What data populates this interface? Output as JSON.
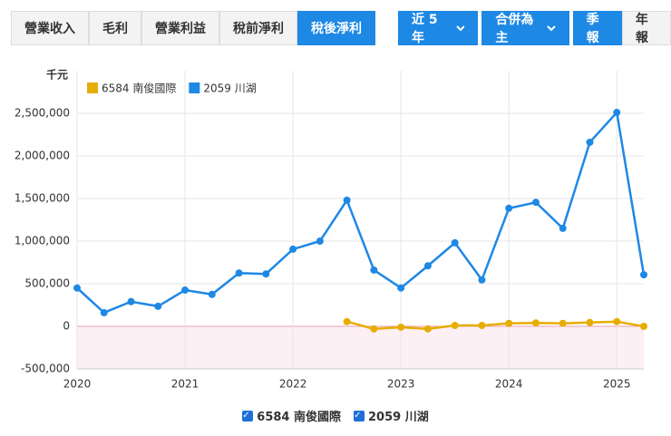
{
  "toolbar": {
    "metrics": [
      "營業收入",
      "毛利",
      "營業利益",
      "稅前淨利",
      "稅後淨利"
    ],
    "active_metric": 4,
    "range": "近 5 年",
    "basis": "合併為主",
    "periods": [
      "季報",
      "年報"
    ],
    "active_period": 0
  },
  "chart_data": {
    "type": "line",
    "y_unit": "千元",
    "x": [
      2020,
      2020.25,
      2020.5,
      2020.75,
      2021,
      2021.25,
      2021.5,
      2021.75,
      2022,
      2022.25,
      2022.5,
      2022.75,
      2023,
      2023.25,
      2023.5,
      2023.75,
      2024,
      2024.25,
      2024.5,
      2024.75,
      2025,
      2025.25
    ],
    "xlim": [
      2020,
      2025.25
    ],
    "xticks": [
      2020,
      2021,
      2022,
      2023,
      2024,
      2025
    ],
    "ylim": [
      -500000,
      3000000
    ],
    "yticks": [
      {
        "value": -500000,
        "label": "-500,000"
      },
      0,
      {
        "value": 500000,
        "label": "500,000"
      },
      {
        "value": 1000000,
        "label": "1,000,000"
      },
      {
        "value": 1500000,
        "label": "1,500,000"
      },
      {
        "value": 2000000,
        "label": "2,000,000"
      },
      {
        "value": 2500000,
        "label": "2,500,000"
      }
    ],
    "grid": true,
    "series": [
      {
        "name": "6584 南俊國際",
        "color": "#e6ad00",
        "values": [
          null,
          null,
          null,
          null,
          null,
          null,
          null,
          null,
          null,
          null,
          55000,
          -30000,
          -10000,
          -30000,
          10000,
          10000,
          35000,
          40000,
          35000,
          45000,
          55000,
          0
        ]
      },
      {
        "name": "2059 川湖",
        "color": "#1e88e5",
        "values": [
          450000,
          160000,
          290000,
          235000,
          425000,
          375000,
          625000,
          615000,
          905000,
          1000000,
          1480000,
          660000,
          450000,
          710000,
          980000,
          545000,
          1385000,
          1455000,
          1150000,
          2160000,
          2510000,
          605000
        ]
      }
    ]
  }
}
